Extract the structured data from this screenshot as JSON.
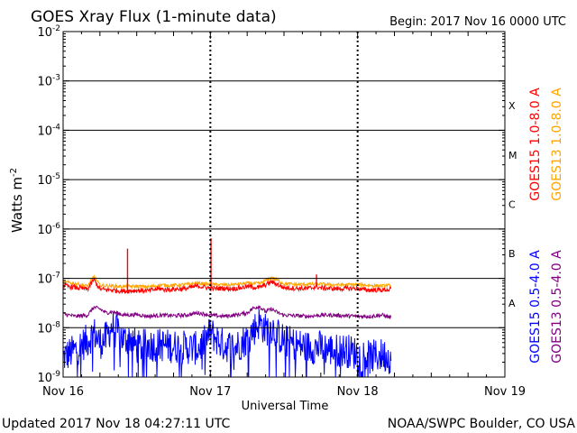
{
  "chart_data": {
    "type": "line",
    "title": "GOES Xray Flux (1-minute data)",
    "begin_label": "Begin:  2017 Nov 16 0000 UTC",
    "xlabel": "Universal Time",
    "ylabel": "Watts m",
    "ylabel_sup": "-2",
    "y_scale": "log",
    "ylim": [
      1e-09,
      0.01
    ],
    "y_ticks": [
      {
        "base": "10",
        "exp": "-2"
      },
      {
        "base": "10",
        "exp": "-3"
      },
      {
        "base": "10",
        "exp": "-4"
      },
      {
        "base": "10",
        "exp": "-5"
      },
      {
        "base": "10",
        "exp": "-6"
      },
      {
        "base": "10",
        "exp": "-7"
      },
      {
        "base": "10",
        "exp": "-8"
      },
      {
        "base": "10",
        "exp": "-9"
      }
    ],
    "x_ticks": [
      "Nov 16",
      "Nov 17",
      "Nov 18",
      "Nov 19"
    ],
    "xlim_hours": [
      0,
      72
    ],
    "flare_classes": [
      {
        "label": "X",
        "flux": 0.000316
      },
      {
        "label": "M",
        "flux": 3.16e-05
      },
      {
        "label": "C",
        "flux": 3.16e-06
      },
      {
        "label": "B",
        "flux": 3.16e-07
      },
      {
        "label": "A",
        "flux": 3.16e-08
      }
    ],
    "grid": true,
    "legend_position": "right",
    "series": [
      {
        "name": "GOES15 1.0-8.0 A",
        "color": "#ff0000",
        "hours": [
          0,
          2,
          4,
          5,
          6,
          8,
          10,
          12,
          14,
          15,
          16,
          16.2,
          18,
          20,
          22,
          24,
          24.2,
          26,
          28,
          30,
          32,
          34,
          36,
          38,
          40,
          41.3,
          42,
          44,
          46,
          48,
          48.5,
          50,
          52,
          53.5
        ],
        "flux": [
          7.2e-08,
          6.5e-08,
          6e-08,
          9.5e-08,
          6e-08,
          5.8e-08,
          5.5e-08,
          5.7e-08,
          5.6e-08,
          6e-08,
          6.2e-08,
          5.9e-08,
          6e-08,
          6.2e-08,
          7e-08,
          6.3e-08,
          6.2e-08,
          6.3e-08,
          6.2e-08,
          6.8e-08,
          6.5e-08,
          8.5e-08,
          6.5e-08,
          6.3e-08,
          6.2e-08,
          6.8e-08,
          6.4e-08,
          6.2e-08,
          6.2e-08,
          6.3e-08,
          6e-08,
          5.8e-08,
          5.8e-08,
          6e-08
        ],
        "spikes": [
          {
            "hour": 10.5,
            "flux": 4e-07
          },
          {
            "hour": 24.1,
            "flux": 6.5e-07
          },
          {
            "hour": 41.3,
            "flux": 1.2e-07
          }
        ]
      },
      {
        "name": "GOES13 1.0-8.0 A",
        "color": "#ffa500",
        "hours": [
          0,
          2,
          4,
          5,
          6,
          8,
          10,
          12,
          14,
          16,
          18,
          20,
          22,
          24,
          26,
          28,
          30,
          32,
          34,
          36,
          38,
          40,
          42,
          44,
          46,
          48,
          50,
          52,
          53.5
        ],
        "flux": [
          8.5e-08,
          7.8e-08,
          7e-08,
          1.1e-07,
          7.2e-08,
          7e-08,
          6.8e-08,
          6.9e-08,
          6.7e-08,
          7.3e-08,
          7.2e-08,
          7.5e-08,
          8e-08,
          7.5e-08,
          7.4e-08,
          7.5e-08,
          8e-08,
          7.8e-08,
          1.05e-07,
          7.8e-08,
          7.5e-08,
          7.6e-08,
          7.6e-08,
          7.4e-08,
          7.4e-08,
          7.5e-08,
          7.2e-08,
          7e-08,
          7.2e-08
        ]
      },
      {
        "name": "GOES15 0.5-4.0 A",
        "color": "#0000ff",
        "hours": [
          0,
          2,
          3,
          4,
          5,
          6,
          7,
          8,
          9,
          10,
          11,
          12,
          14,
          16,
          18,
          20,
          22,
          23,
          24,
          26,
          28,
          30,
          31,
          32,
          33,
          34,
          35,
          36,
          37,
          38,
          40,
          42,
          44,
          46,
          48,
          50,
          52,
          53.5
        ],
        "flux": [
          2.5e-09,
          3.5e-09,
          4.5e-09,
          5.5e-09,
          8e-09,
          5e-09,
          6e-09,
          1.1e-08,
          8e-09,
          5.5e-09,
          6.5e-09,
          4e-09,
          4.5e-09,
          4.5e-09,
          4.2e-09,
          4e-09,
          3.8e-09,
          5e-09,
          8e-09,
          4.5e-09,
          4e-09,
          6e-09,
          9e-09,
          1.3e-08,
          9e-09,
          1.05e-08,
          7e-09,
          5.5e-09,
          5e-09,
          4.5e-09,
          4e-09,
          4e-09,
          3.5e-09,
          3.5e-09,
          3e-09,
          2.5e-09,
          2.8e-09,
          2.5e-09
        ]
      },
      {
        "name": "GOES13 0.5-4.0 A",
        "color": "#800080",
        "hours": [
          0,
          2,
          4,
          5,
          6,
          7,
          8,
          10,
          12,
          14,
          16,
          18,
          20,
          22,
          24,
          26,
          28,
          30,
          31,
          32,
          33,
          34,
          35,
          36,
          38,
          40,
          42,
          44,
          46,
          48,
          50,
          52,
          53.5
        ],
        "flux": [
          1.9e-08,
          1.7e-08,
          1.8e-08,
          2.6e-08,
          2.4e-08,
          2e-08,
          2.1e-08,
          1.8e-08,
          1.85e-08,
          1.7e-08,
          1.8e-08,
          1.75e-08,
          1.8e-08,
          2e-08,
          1.8e-08,
          1.7e-08,
          1.8e-08,
          2e-08,
          2.5e-08,
          2.7e-08,
          2.1e-08,
          2.4e-08,
          2e-08,
          1.8e-08,
          1.75e-08,
          1.7e-08,
          1.8e-08,
          1.8e-08,
          1.75e-08,
          1.7e-08,
          1.7e-08,
          1.8e-08,
          1.6e-08
        ]
      }
    ]
  },
  "footer": {
    "updated": "Updated 2017 Nov 18 04:27:11 UTC",
    "credit": "NOAA/SWPC Boulder, CO USA"
  }
}
